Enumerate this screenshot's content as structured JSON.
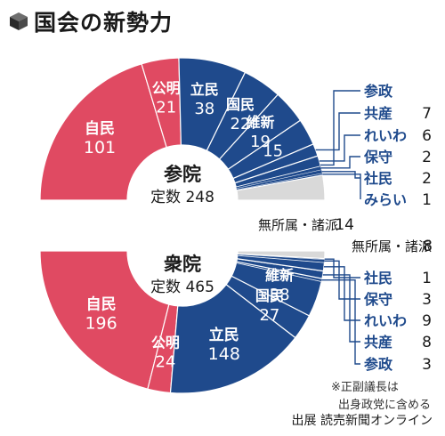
{
  "title": "国会の新勢力",
  "source": "出展 読売新聞オンライン",
  "note_lines": [
    "※正副議長は",
    "出身政党に含める"
  ],
  "colors": {
    "ruling": "#e04a62",
    "opposition": "#1f4a8c",
    "other": "#d9d9d9",
    "text_dark": "#1a1a1a",
    "text_light": "#ffffff"
  },
  "chart_data": [
    {
      "type": "pie",
      "house": "参院",
      "total_label": "定数 248",
      "total": 248,
      "series": [
        {
          "name": "自民",
          "value": 101,
          "group": "ruling"
        },
        {
          "name": "公明",
          "value": 21,
          "group": "ruling"
        },
        {
          "name": "立民",
          "value": 38,
          "group": "opposition"
        },
        {
          "name": "国民",
          "value": 22,
          "group": "opposition"
        },
        {
          "name": "維新",
          "value": 19,
          "group": "opposition"
        },
        {
          "name": "",
          "value": 15,
          "group": "opposition"
        },
        {
          "name": "参政",
          "value": null,
          "group": "opposition"
        },
        {
          "name": "共産",
          "value": 7,
          "group": "opposition"
        },
        {
          "name": "れいわ",
          "value": 6,
          "group": "opposition"
        },
        {
          "name": "保守",
          "value": 2,
          "group": "opposition"
        },
        {
          "name": "社民",
          "value": 2,
          "group": "opposition"
        },
        {
          "name": "みらい",
          "value": 1,
          "group": "opposition"
        },
        {
          "name": "無所属・諸派",
          "value": 14,
          "group": "other"
        }
      ]
    },
    {
      "type": "pie",
      "house": "衆院",
      "total_label": "定数 465",
      "total": 465,
      "series": [
        {
          "name": "自民",
          "value": 196,
          "group": "ruling"
        },
        {
          "name": "公明",
          "value": 24,
          "group": "ruling"
        },
        {
          "name": "立民",
          "value": 148,
          "group": "opposition"
        },
        {
          "name": "国民",
          "value": 27,
          "group": "opposition"
        },
        {
          "name": "維新",
          "value": 38,
          "group": "opposition"
        },
        {
          "name": "参政",
          "value": 3,
          "group": "opposition"
        },
        {
          "name": "共産",
          "value": 8,
          "group": "opposition"
        },
        {
          "name": "れいわ",
          "value": 9,
          "group": "opposition"
        },
        {
          "name": "保守",
          "value": 3,
          "group": "opposition"
        },
        {
          "name": "社民",
          "value": 1,
          "group": "opposition"
        },
        {
          "name": "無所属・諸派",
          "value": 8,
          "group": "other"
        }
      ]
    }
  ]
}
